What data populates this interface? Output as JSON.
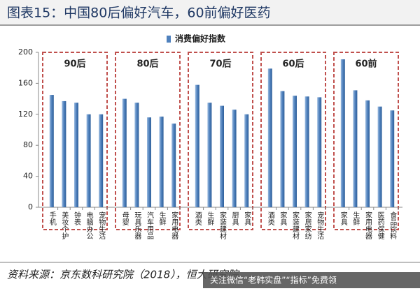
{
  "chart_data": {
    "type": "bar",
    "title": "图表15：中国80后偏好汽车，60前偏好医药",
    "series_name": "消费偏好指数",
    "color": "#4f81bd",
    "ylim": [
      0,
      200
    ],
    "yticks": [
      0,
      40,
      80,
      120,
      160,
      200
    ],
    "groups": [
      {
        "label": "90后",
        "categories": [
          "手机",
          "美妆个护",
          "钟表",
          "电脑办公",
          "宠物生活"
        ],
        "values": [
          145,
          137,
          135,
          120,
          120
        ]
      },
      {
        "label": "80后",
        "categories": [
          "母婴",
          "玩具乐器",
          "汽车用品",
          "生鲜",
          "家用电器"
        ],
        "values": [
          140,
          135,
          116,
          117,
          108
        ]
      },
      {
        "label": "70后",
        "categories": [
          "酒类",
          "生鲜",
          "家装建材",
          "厨具",
          "家具"
        ],
        "values": [
          158,
          135,
          131,
          126,
          120
        ]
      },
      {
        "label": "60后",
        "categories": [
          "酒类",
          "家具",
          "家装建材",
          "家居家纺",
          "宠物生活"
        ],
        "values": [
          179,
          150,
          144,
          143,
          142
        ]
      },
      {
        "label": "60前",
        "categories": [
          "家具",
          "生鲜",
          "家用电器",
          "医药保健",
          "食品饮料"
        ],
        "values": [
          191,
          151,
          138,
          130,
          125
        ]
      }
    ],
    "source": "资料来源：京东数科研究院（2018），恒大研究院",
    "watermark": "关注微信“老韩实盘”“指标”免费领"
  }
}
